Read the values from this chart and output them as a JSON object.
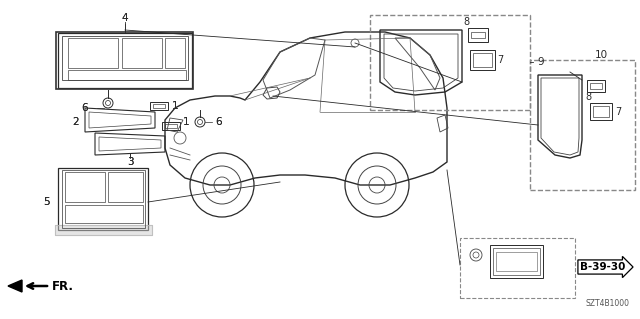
{
  "background_color": "#ffffff",
  "fig_width": 6.4,
  "fig_height": 3.19,
  "dpi": 100,
  "diagram_code": "SZT4B1000",
  "fr_label": "FR.",
  "b_ref": "B-39-30",
  "line_color": "#2a2a2a",
  "box_color": "#aaaaaa"
}
